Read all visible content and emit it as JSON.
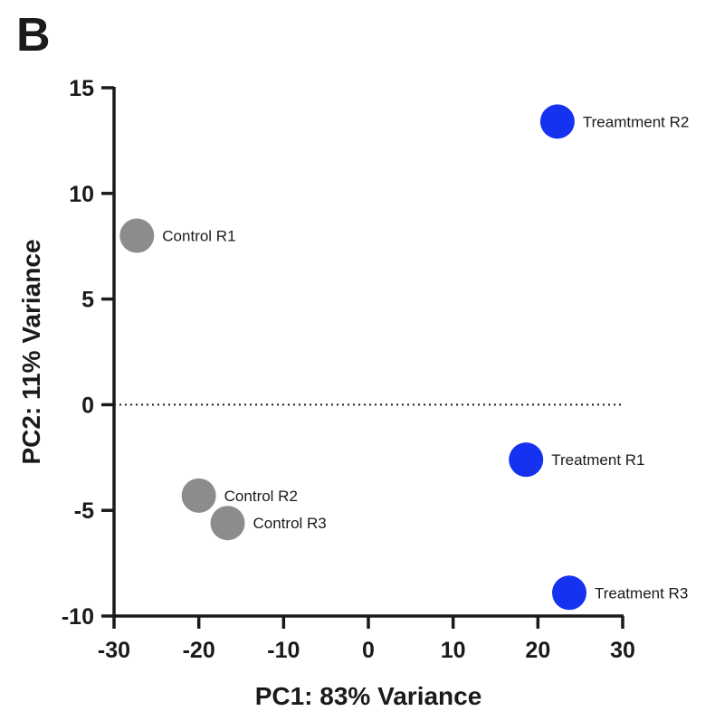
{
  "panel_label": "B",
  "colors": {
    "control": "#8c8c8c",
    "treatment": "#1432f0",
    "axis": "#1a1a1a"
  },
  "chart_data": {
    "type": "scatter",
    "title": "",
    "xlabel": "PC1: 83% Variance",
    "ylabel": "PC2: 11% Variance",
    "xlim": [
      -30,
      30
    ],
    "ylim": [
      -10,
      15
    ],
    "xticks": [
      "-30",
      "-20",
      "-10",
      "0",
      "10",
      "20",
      "30"
    ],
    "yticks": [
      "-10",
      "-5",
      "0",
      "5",
      "10",
      "15"
    ],
    "reference_line": {
      "y": 0,
      "style": "dotted"
    },
    "grid": false,
    "points": [
      {
        "label": "Control R1",
        "group": "control",
        "x": -27.3,
        "y": 8.0
      },
      {
        "label": "Control R2",
        "group": "control",
        "x": -20.0,
        "y": -4.3
      },
      {
        "label": "Control R3",
        "group": "control",
        "x": -16.6,
        "y": -5.6
      },
      {
        "label": "Treatment R1",
        "group": "treatment",
        "x": 18.6,
        "y": -2.6
      },
      {
        "label": "Treamtment R2",
        "group": "treatment",
        "x": 22.3,
        "y": 13.4
      },
      {
        "label": "Treatment R3",
        "group": "treatment",
        "x": 23.7,
        "y": -8.9
      }
    ]
  }
}
